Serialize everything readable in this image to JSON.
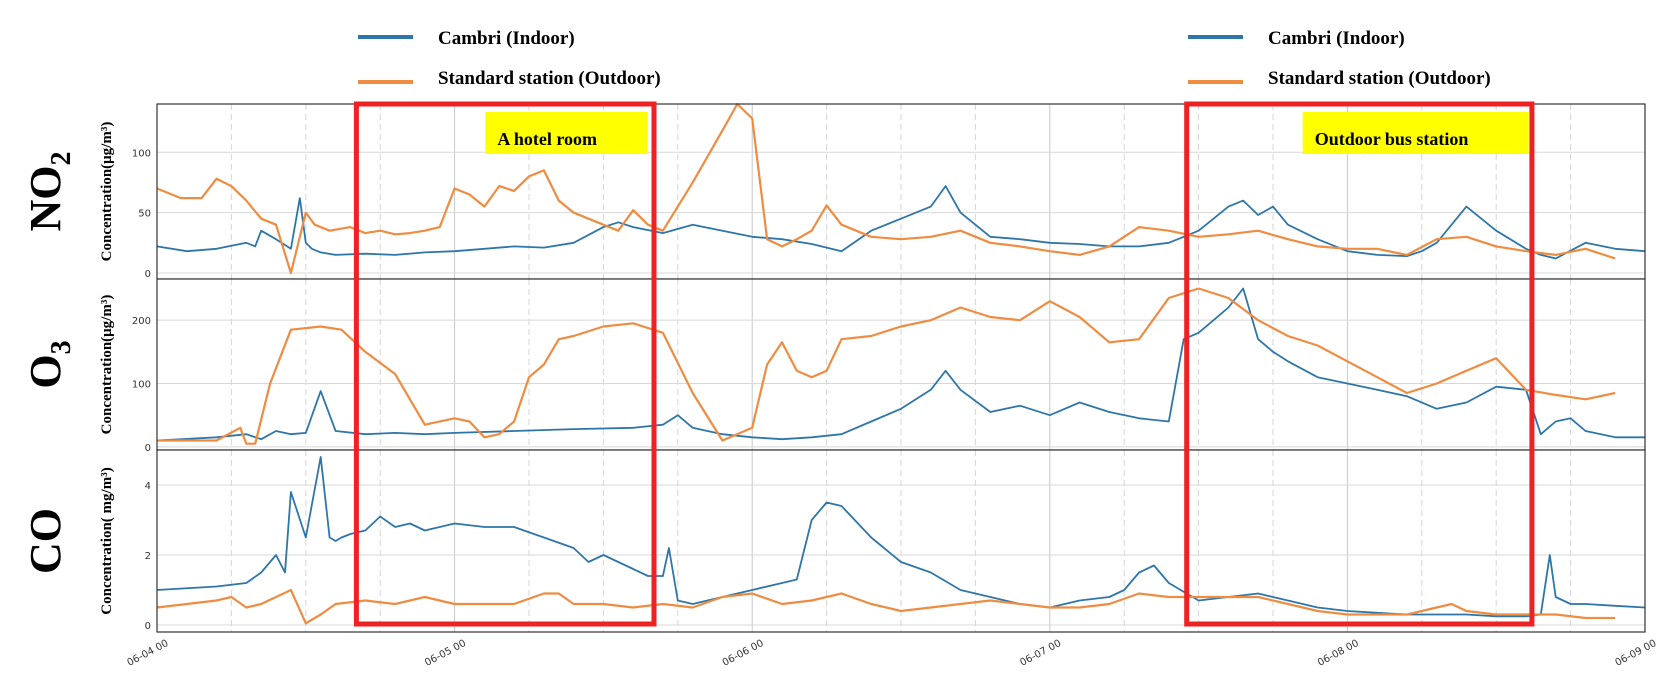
{
  "chart_data": {
    "type": "line",
    "colors": {
      "indoor": "#2f76a8",
      "outdoor": "#ee8c42",
      "highlight": "#ee2222",
      "annotation_bg": "#ffff00"
    },
    "legend": [
      {
        "label": "Cambri (Indoor)"
      },
      {
        "label": "Standard station (Outdoor)"
      }
    ],
    "x_ticks": [
      "06-04 00",
      "06-05 00",
      "06-06 00",
      "06-07 00",
      "06-08 00",
      "06-09 00"
    ],
    "x_range_days": [
      0,
      5
    ],
    "annotations": [
      {
        "text": "A hotel room",
        "x_range": [
          0.67,
          1.67
        ]
      },
      {
        "text": "Outdoor bus station",
        "x_range": [
          3.46,
          4.62
        ]
      }
    ],
    "panels": [
      {
        "name": "NO2",
        "label_main": "NO",
        "label_sub": "2",
        "ylabel": "Concentration(μg/m³)",
        "ylim": [
          -5,
          140
        ],
        "yticks": [
          0,
          50,
          100
        ],
        "series": [
          {
            "name": "Cambri (Indoor)",
            "x": [
              0,
              0.1,
              0.2,
              0.3,
              0.33,
              0.35,
              0.4,
              0.45,
              0.48,
              0.5,
              0.52,
              0.55,
              0.6,
              0.7,
              0.8,
              0.9,
              1.0,
              1.1,
              1.2,
              1.3,
              1.4,
              1.5,
              1.55,
              1.6,
              1.7,
              1.8,
              1.9,
              2.0,
              2.1,
              2.2,
              2.3,
              2.4,
              2.5,
              2.6,
              2.65,
              2.7,
              2.8,
              2.9,
              3.0,
              3.1,
              3.2,
              3.3,
              3.4,
              3.45,
              3.5,
              3.55,
              3.6,
              3.65,
              3.7,
              3.75,
              3.8,
              3.9,
              4.0,
              4.1,
              4.2,
              4.25,
              4.3,
              4.35,
              4.4,
              4.5,
              4.6,
              4.65,
              4.7,
              4.8,
              4.9,
              5.0
            ],
            "y": [
              22,
              18,
              20,
              25,
              22,
              35,
              28,
              20,
              62,
              25,
              20,
              17,
              15,
              16,
              15,
              17,
              18,
              20,
              22,
              21,
              25,
              38,
              42,
              38,
              33,
              40,
              35,
              30,
              28,
              24,
              18,
              35,
              45,
              55,
              72,
              50,
              30,
              28,
              25,
              24,
              22,
              22,
              25,
              30,
              35,
              45,
              55,
              60,
              48,
              55,
              40,
              28,
              18,
              15,
              14,
              18,
              25,
              40,
              55,
              35,
              20,
              15,
              12,
              25,
              20,
              18
            ]
          },
          {
            "name": "Standard station (Outdoor)",
            "x": [
              0,
              0.08,
              0.15,
              0.2,
              0.25,
              0.3,
              0.35,
              0.4,
              0.45,
              0.5,
              0.53,
              0.58,
              0.65,
              0.7,
              0.75,
              0.8,
              0.85,
              0.9,
              0.95,
              1.0,
              1.05,
              1.1,
              1.15,
              1.2,
              1.25,
              1.3,
              1.35,
              1.4,
              1.45,
              1.5,
              1.55,
              1.6,
              1.65,
              1.7,
              1.8,
              1.9,
              1.95,
              2.0,
              2.05,
              2.1,
              2.15,
              2.2,
              2.25,
              2.3,
              2.4,
              2.5,
              2.6,
              2.7,
              2.8,
              2.9,
              3.0,
              3.1,
              3.2,
              3.3,
              3.4,
              3.5,
              3.6,
              3.7,
              3.8,
              3.9,
              4.0,
              4.1,
              4.2,
              4.3,
              4.4,
              4.5,
              4.6,
              4.7,
              4.8,
              4.9
            ],
            "y": [
              70,
              62,
              62,
              78,
              72,
              60,
              45,
              40,
              0,
              50,
              40,
              35,
              38,
              33,
              35,
              32,
              33,
              35,
              38,
              70,
              65,
              55,
              72,
              68,
              80,
              85,
              60,
              50,
              45,
              40,
              35,
              52,
              40,
              35,
              75,
              118,
              140,
              128,
              28,
              22,
              28,
              35,
              56,
              40,
              30,
              28,
              30,
              35,
              25,
              22,
              18,
              15,
              22,
              38,
              35,
              30,
              32,
              35,
              28,
              22,
              20,
              20,
              15,
              28,
              30,
              22,
              18,
              15,
              20,
              12
            ]
          }
        ]
      },
      {
        "name": "O3",
        "label_main": "O",
        "label_sub": "3",
        "ylabel": "Concentration(μg/m³)",
        "ylim": [
          -5,
          265
        ],
        "yticks": [
          0,
          100,
          200
        ],
        "series": [
          {
            "name": "Cambri (Indoor)",
            "x": [
              0,
              0.2,
              0.3,
              0.35,
              0.4,
              0.45,
              0.5,
              0.55,
              0.6,
              0.7,
              0.8,
              0.9,
              1.0,
              1.2,
              1.4,
              1.6,
              1.7,
              1.75,
              1.8,
              1.9,
              2.0,
              2.1,
              2.2,
              2.3,
              2.4,
              2.5,
              2.6,
              2.65,
              2.7,
              2.8,
              2.9,
              3.0,
              3.1,
              3.2,
              3.3,
              3.4,
              3.45,
              3.5,
              3.55,
              3.6,
              3.65,
              3.7,
              3.75,
              3.8,
              3.9,
              4.0,
              4.1,
              4.2,
              4.3,
              4.4,
              4.5,
              4.6,
              4.65,
              4.7,
              4.75,
              4.8,
              4.9,
              5.0
            ],
            "y": [
              10,
              15,
              20,
              12,
              25,
              20,
              22,
              88,
              25,
              20,
              22,
              20,
              22,
              25,
              28,
              30,
              35,
              50,
              30,
              20,
              15,
              12,
              15,
              20,
              40,
              60,
              90,
              120,
              90,
              55,
              65,
              50,
              70,
              55,
              45,
              40,
              170,
              180,
              200,
              220,
              250,
              170,
              150,
              135,
              110,
              100,
              90,
              80,
              60,
              70,
              95,
              90,
              20,
              40,
              45,
              25,
              15,
              15
            ]
          },
          {
            "name": "Standard station (Outdoor)",
            "x": [
              0,
              0.2,
              0.28,
              0.3,
              0.33,
              0.38,
              0.45,
              0.55,
              0.62,
              0.7,
              0.8,
              0.9,
              1.0,
              1.05,
              1.1,
              1.15,
              1.2,
              1.25,
              1.3,
              1.35,
              1.4,
              1.5,
              1.6,
              1.7,
              1.8,
              1.9,
              2.0,
              2.05,
              2.1,
              2.15,
              2.2,
              2.25,
              2.3,
              2.4,
              2.5,
              2.6,
              2.7,
              2.8,
              2.9,
              3.0,
              3.1,
              3.2,
              3.3,
              3.4,
              3.5,
              3.6,
              3.7,
              3.8,
              3.9,
              4.0,
              4.1,
              4.2,
              4.3,
              4.4,
              4.5,
              4.6,
              4.7,
              4.8,
              4.9
            ],
            "y": [
              10,
              10,
              30,
              5,
              5,
              100,
              185,
              190,
              185,
              150,
              115,
              35,
              45,
              40,
              15,
              20,
              40,
              110,
              130,
              170,
              175,
              190,
              195,
              180,
              85,
              10,
              30,
              130,
              165,
              120,
              110,
              120,
              170,
              175,
              190,
              200,
              220,
              205,
              200,
              230,
              205,
              165,
              170,
              235,
              250,
              235,
              200,
              175,
              160,
              135,
              110,
              85,
              100,
              120,
              140,
              90,
              82,
              75,
              85
            ]
          }
        ]
      },
      {
        "name": "CO",
        "label_main": "CO",
        "label_sub": "",
        "ylabel": "Concentration( mg/m³)",
        "ylim": [
          -0.2,
          5
        ],
        "yticks": [
          0,
          2,
          4
        ],
        "series": [
          {
            "name": "Cambri (Indoor)",
            "x": [
              0,
              0.2,
              0.3,
              0.35,
              0.4,
              0.43,
              0.45,
              0.5,
              0.55,
              0.58,
              0.6,
              0.62,
              0.65,
              0.7,
              0.75,
              0.8,
              0.85,
              0.9,
              1.0,
              1.1,
              1.2,
              1.3,
              1.4,
              1.45,
              1.5,
              1.6,
              1.65,
              1.7,
              1.72,
              1.75,
              1.8,
              1.9,
              2.0,
              2.1,
              2.15,
              2.2,
              2.25,
              2.3,
              2.4,
              2.5,
              2.6,
              2.7,
              2.8,
              2.9,
              3.0,
              3.1,
              3.2,
              3.25,
              3.3,
              3.35,
              3.4,
              3.5,
              3.6,
              3.7,
              3.8,
              3.9,
              4.0,
              4.1,
              4.2,
              4.3,
              4.4,
              4.5,
              4.6,
              4.65,
              4.68,
              4.7,
              4.75,
              4.8,
              4.9,
              5.0
            ],
            "y": [
              1.0,
              1.1,
              1.2,
              1.5,
              2.0,
              1.5,
              3.8,
              2.5,
              4.8,
              2.5,
              2.4,
              2.5,
              2.6,
              2.7,
              3.1,
              2.8,
              2.9,
              2.7,
              2.9,
              2.8,
              2.8,
              2.5,
              2.2,
              1.8,
              2.0,
              1.6,
              1.4,
              1.4,
              2.2,
              0.7,
              0.6,
              0.8,
              1.0,
              1.2,
              1.3,
              3.0,
              3.5,
              3.4,
              2.5,
              1.8,
              1.5,
              1.0,
              0.8,
              0.6,
              0.5,
              0.7,
              0.8,
              1.0,
              1.5,
              1.7,
              1.2,
              0.7,
              0.8,
              0.9,
              0.7,
              0.5,
              0.4,
              0.35,
              0.3,
              0.3,
              0.3,
              0.25,
              0.25,
              0.3,
              2.0,
              0.8,
              0.6,
              0.6,
              0.55,
              0.5
            ]
          },
          {
            "name": "Standard station (Outdoor)",
            "x": [
              0,
              0.1,
              0.2,
              0.25,
              0.3,
              0.35,
              0.4,
              0.45,
              0.5,
              0.55,
              0.6,
              0.7,
              0.8,
              0.9,
              1.0,
              1.1,
              1.2,
              1.3,
              1.35,
              1.4,
              1.5,
              1.6,
              1.7,
              1.8,
              1.9,
              2.0,
              2.1,
              2.2,
              2.3,
              2.4,
              2.5,
              2.6,
              2.7,
              2.8,
              2.9,
              3.0,
              3.1,
              3.2,
              3.3,
              3.4,
              3.5,
              3.6,
              3.7,
              3.8,
              3.9,
              4.0,
              4.1,
              4.2,
              4.25,
              4.3,
              4.35,
              4.4,
              4.5,
              4.6,
              4.7,
              4.8,
              4.9
            ],
            "y": [
              0.5,
              0.6,
              0.7,
              0.8,
              0.5,
              0.6,
              0.8,
              1.0,
              0.05,
              0.3,
              0.6,
              0.7,
              0.6,
              0.8,
              0.6,
              0.6,
              0.6,
              0.9,
              0.9,
              0.6,
              0.6,
              0.5,
              0.6,
              0.5,
              0.8,
              0.9,
              0.6,
              0.7,
              0.9,
              0.6,
              0.4,
              0.5,
              0.6,
              0.7,
              0.6,
              0.5,
              0.5,
              0.6,
              0.9,
              0.8,
              0.8,
              0.8,
              0.8,
              0.6,
              0.4,
              0.3,
              0.3,
              0.3,
              0.4,
              0.5,
              0.6,
              0.4,
              0.3,
              0.3,
              0.3,
              0.2,
              0.2
            ]
          }
        ]
      }
    ]
  }
}
